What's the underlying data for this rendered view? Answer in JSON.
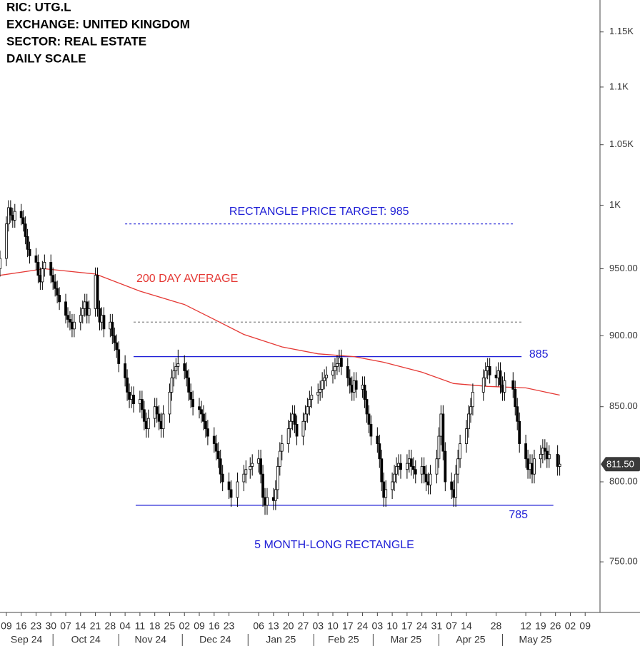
{
  "chart_data": {
    "type": "candlestick",
    "header": [
      "RIC: UTG.L",
      "EXCHANGE: UNITED KINGDOM",
      "SECTOR: REAL ESTATE",
      "DAILY SCALE"
    ],
    "log_scale": true,
    "grid": false,
    "up_color": "#ffffff",
    "down_color": "#000000",
    "ylim": [
      720,
      1180
    ],
    "yticks": [
      {
        "value": 1150,
        "label": "1.15K"
      },
      {
        "value": 1100,
        "label": "1.1K"
      },
      {
        "value": 1050,
        "label": "1.05K"
      },
      {
        "value": 1000,
        "label": "1K"
      },
      {
        "value": 950,
        "label": "950.00"
      },
      {
        "value": 900,
        "label": "900.00"
      },
      {
        "value": 850,
        "label": "850.00"
      },
      {
        "value": 800,
        "label": "800.00"
      },
      {
        "value": 750,
        "label": "750.00"
      }
    ],
    "xlim": [
      "2024-09-06",
      "2025-06-16"
    ],
    "xticks": [
      {
        "value": "2024-09-09",
        "label": "09"
      },
      {
        "value": "2024-09-16",
        "label": "16"
      },
      {
        "value": "2024-09-23",
        "label": "23"
      },
      {
        "value": "2024-09-30",
        "label": "30"
      },
      {
        "value": "2024-10-07",
        "label": "07"
      },
      {
        "value": "2024-10-14",
        "label": "14"
      },
      {
        "value": "2024-10-21",
        "label": "21"
      },
      {
        "value": "2024-10-28",
        "label": "28"
      },
      {
        "value": "2024-11-04",
        "label": "04"
      },
      {
        "value": "2024-11-11",
        "label": "11"
      },
      {
        "value": "2024-11-18",
        "label": "18"
      },
      {
        "value": "2024-11-25",
        "label": "25"
      },
      {
        "value": "2024-12-02",
        "label": "02"
      },
      {
        "value": "2024-12-09",
        "label": "09"
      },
      {
        "value": "2024-12-16",
        "label": "16"
      },
      {
        "value": "2024-12-23",
        "label": "23"
      },
      {
        "value": "2025-01-06",
        "label": "06"
      },
      {
        "value": "2025-01-13",
        "label": "13"
      },
      {
        "value": "2025-01-20",
        "label": "20"
      },
      {
        "value": "2025-01-27",
        "label": "27"
      },
      {
        "value": "2025-02-03",
        "label": "03"
      },
      {
        "value": "2025-02-10",
        "label": "10"
      },
      {
        "value": "2025-02-17",
        "label": "17"
      },
      {
        "value": "2025-02-24",
        "label": "24"
      },
      {
        "value": "2025-03-03",
        "label": "03"
      },
      {
        "value": "2025-03-10",
        "label": "10"
      },
      {
        "value": "2025-03-17",
        "label": "17"
      },
      {
        "value": "2025-03-24",
        "label": "24"
      },
      {
        "value": "2025-03-31",
        "label": "31"
      },
      {
        "value": "2025-04-07",
        "label": "07"
      },
      {
        "value": "2025-04-14",
        "label": "14"
      },
      {
        "value": "2025-04-28",
        "label": "28"
      },
      {
        "value": "2025-05-12",
        "label": "12"
      },
      {
        "value": "2025-05-19",
        "label": "19"
      },
      {
        "value": "2025-05-26",
        "label": "26"
      },
      {
        "value": "2025-06-02",
        "label": "02"
      },
      {
        "value": "2025-06-09",
        "label": "09"
      }
    ],
    "months": [
      {
        "value": "2024-09",
        "label": "Sep 24"
      },
      {
        "value": "2024-10",
        "label": "Oct 24"
      },
      {
        "value": "2024-11",
        "label": "Nov 24"
      },
      {
        "value": "2024-12",
        "label": "Dec 24"
      },
      {
        "value": "2025-01",
        "label": "Jan 25"
      },
      {
        "value": "2025-02",
        "label": "Feb 25"
      },
      {
        "value": "2025-03",
        "label": "Mar 25"
      },
      {
        "value": "2025-04",
        "label": "Apr 25"
      },
      {
        "value": "2025-05",
        "label": "May 25"
      }
    ],
    "x": [
      "2024-09-06",
      "2024-09-09",
      "2024-09-10",
      "2024-09-11",
      "2024-09-12",
      "2024-09-13",
      "2024-09-16",
      "2024-09-17",
      "2024-09-18",
      "2024-09-19",
      "2024-09-20",
      "2024-09-23",
      "2024-09-24",
      "2024-09-25",
      "2024-09-26",
      "2024-09-27",
      "2024-09-30",
      "2024-10-01",
      "2024-10-02",
      "2024-10-03",
      "2024-10-04",
      "2024-10-07",
      "2024-10-08",
      "2024-10-09",
      "2024-10-10",
      "2024-10-11",
      "2024-10-14",
      "2024-10-15",
      "2024-10-16",
      "2024-10-17",
      "2024-10-18",
      "2024-10-21",
      "2024-10-22",
      "2024-10-23",
      "2024-10-24",
      "2024-10-25",
      "2024-10-28",
      "2024-10-29",
      "2024-10-30",
      "2024-10-31",
      "2024-11-01",
      "2024-11-04",
      "2024-11-05",
      "2024-11-06",
      "2024-11-07",
      "2024-11-08",
      "2024-11-11",
      "2024-11-12",
      "2024-11-13",
      "2024-11-14",
      "2024-11-15",
      "2024-11-18",
      "2024-11-19",
      "2024-11-20",
      "2024-11-21",
      "2024-11-22",
      "2024-11-25",
      "2024-11-26",
      "2024-11-27",
      "2024-11-28",
      "2024-11-29",
      "2024-12-02",
      "2024-12-03",
      "2024-12-04",
      "2024-12-05",
      "2024-12-06",
      "2024-12-09",
      "2024-12-10",
      "2024-12-11",
      "2024-12-12",
      "2024-12-13",
      "2024-12-16",
      "2024-12-17",
      "2024-12-18",
      "2024-12-19",
      "2024-12-20",
      "2024-12-23",
      "2024-12-24",
      "2024-12-27",
      "2024-12-30",
      "2024-12-31",
      "2025-01-02",
      "2025-01-03",
      "2025-01-06",
      "2025-01-07",
      "2025-01-08",
      "2025-01-09",
      "2025-01-10",
      "2025-01-13",
      "2025-01-14",
      "2025-01-15",
      "2025-01-16",
      "2025-01-17",
      "2025-01-20",
      "2025-01-21",
      "2025-01-22",
      "2025-01-23",
      "2025-01-24",
      "2025-01-27",
      "2025-01-28",
      "2025-01-29",
      "2025-01-30",
      "2025-01-31",
      "2025-02-03",
      "2025-02-04",
      "2025-02-05",
      "2025-02-06",
      "2025-02-07",
      "2025-02-10",
      "2025-02-11",
      "2025-02-12",
      "2025-02-13",
      "2025-02-14",
      "2025-02-17",
      "2025-02-18",
      "2025-02-19",
      "2025-02-20",
      "2025-02-21",
      "2025-02-24",
      "2025-02-25",
      "2025-02-26",
      "2025-02-27",
      "2025-02-28",
      "2025-03-03",
      "2025-03-04",
      "2025-03-05",
      "2025-03-06",
      "2025-03-07",
      "2025-03-10",
      "2025-03-11",
      "2025-03-12",
      "2025-03-13",
      "2025-03-14",
      "2025-03-17",
      "2025-03-18",
      "2025-03-19",
      "2025-03-20",
      "2025-03-21",
      "2025-03-24",
      "2025-03-25",
      "2025-03-26",
      "2025-03-27",
      "2025-03-28",
      "2025-03-31",
      "2025-04-01",
      "2025-04-02",
      "2025-04-03",
      "2025-04-04",
      "2025-04-07",
      "2025-04-08",
      "2025-04-09",
      "2025-04-10",
      "2025-04-11",
      "2025-04-14",
      "2025-04-15",
      "2025-04-16",
      "2025-04-17",
      "2025-04-22",
      "2025-04-23",
      "2025-04-24",
      "2025-04-25",
      "2025-04-28",
      "2025-04-29",
      "2025-04-30",
      "2025-05-01",
      "2025-05-02",
      "2025-05-06",
      "2025-05-07",
      "2025-05-08",
      "2025-05-09",
      "2025-05-12",
      "2025-05-13",
      "2025-05-14",
      "2025-05-15",
      "2025-05-16",
      "2025-05-19",
      "2025-05-20",
      "2025-05-21",
      "2025-05-22",
      "2025-05-23",
      "2025-05-27",
      "2025-05-28"
    ],
    "open": [
      950,
      958,
      985,
      998,
      992,
      988,
      995,
      990,
      985,
      975,
      965,
      960,
      955,
      945,
      940,
      950,
      955,
      945,
      940,
      935,
      930,
      925,
      915,
      912,
      910,
      905,
      910,
      915,
      920,
      925,
      915,
      920,
      945,
      920,
      910,
      915,
      905,
      910,
      900,
      895,
      890,
      880,
      870,
      860,
      855,
      858,
      852,
      855,
      848,
      840,
      835,
      842,
      850,
      845,
      840,
      835,
      845,
      860,
      870,
      875,
      878,
      880,
      875,
      870,
      860,
      855,
      850,
      848,
      845,
      840,
      835,
      830,
      825,
      820,
      815,
      805,
      800,
      795,
      790,
      800,
      805,
      808,
      810,
      812,
      815,
      805,
      790,
      785,
      790,
      788,
      795,
      810,
      820,
      825,
      835,
      840,
      845,
      838,
      830,
      840,
      845,
      850,
      855,
      858,
      860,
      862,
      868,
      870,
      872,
      875,
      878,
      880,
      884,
      878,
      870,
      865,
      860,
      868,
      862,
      865,
      855,
      845,
      838,
      830,
      825,
      815,
      800,
      790,
      795,
      800,
      805,
      810,
      812,
      808,
      812,
      815,
      810,
      808,
      805,
      810,
      805,
      800,
      798,
      805,
      815,
      830,
      845,
      820,
      800,
      795,
      790,
      805,
      815,
      825,
      835,
      845,
      850,
      860,
      870,
      875,
      878,
      872,
      870,
      875,
      865,
      860,
      868,
      862,
      850,
      840,
      825,
      815,
      808,
      812,
      805,
      815,
      818,
      822,
      820,
      815,
      818,
      810
    ],
    "high": [
      964,
      991,
      1004,
      1004,
      998,
      1001,
      1001,
      996,
      991,
      981,
      971,
      966,
      961,
      951,
      956,
      961,
      961,
      951,
      946,
      941,
      936,
      931,
      921,
      918,
      916,
      916,
      921,
      926,
      931,
      931,
      926,
      951,
      951,
      926,
      921,
      921,
      916,
      916,
      906,
      901,
      896,
      886,
      876,
      866,
      864,
      864,
      861,
      861,
      854,
      846,
      848,
      856,
      856,
      851,
      846,
      851,
      866,
      876,
      881,
      884,
      890,
      886,
      881,
      876,
      866,
      861,
      856,
      854,
      851,
      846,
      841,
      836,
      831,
      826,
      821,
      811,
      806,
      801,
      806,
      811,
      814,
      816,
      818,
      821,
      821,
      811,
      796,
      796,
      796,
      801,
      816,
      826,
      831,
      841,
      846,
      851,
      851,
      844,
      846,
      851,
      856,
      861,
      864,
      866,
      868,
      874,
      876,
      878,
      881,
      884,
      886,
      890,
      890,
      884,
      876,
      871,
      874,
      874,
      871,
      871,
      861,
      851,
      844,
      836,
      831,
      821,
      806,
      801,
      806,
      811,
      816,
      818,
      818,
      818,
      821,
      821,
      816,
      814,
      816,
      816,
      811,
      806,
      811,
      821,
      836,
      851,
      851,
      826,
      806,
      801,
      811,
      821,
      831,
      841,
      851,
      856,
      866,
      876,
      881,
      884,
      884,
      878,
      881,
      881,
      871,
      874,
      874,
      868,
      856,
      846,
      831,
      821,
      818,
      818,
      821,
      824,
      828,
      828,
      826,
      824,
      824,
      817.5
    ],
    "low": [
      944,
      952,
      979,
      986,
      982,
      982,
      984,
      979,
      969,
      959,
      954,
      949,
      939,
      934,
      934,
      944,
      939,
      934,
      929,
      924,
      919,
      909,
      906,
      904,
      899,
      899,
      904,
      909,
      914,
      909,
      909,
      914,
      914,
      904,
      904,
      899,
      899,
      894,
      889,
      884,
      874,
      864,
      854,
      849,
      849,
      846,
      846,
      842,
      834,
      829,
      829,
      836,
      839,
      834,
      829,
      829,
      839,
      854,
      864,
      869,
      872,
      869,
      864,
      854,
      849,
      844,
      842,
      839,
      834,
      829,
      824,
      819,
      814,
      809,
      799,
      794,
      789,
      784,
      784,
      794,
      799,
      802,
      804,
      806,
      799,
      784,
      779,
      779,
      782,
      782,
      789,
      804,
      814,
      819,
      829,
      834,
      832,
      824,
      824,
      834,
      839,
      844,
      849,
      852,
      854,
      856,
      862,
      864,
      866,
      869,
      872,
      874,
      872,
      864,
      859,
      854,
      854,
      856,
      856,
      849,
      839,
      832,
      824,
      819,
      809,
      794,
      784,
      784,
      789,
      794,
      799,
      804,
      802,
      802,
      806,
      804,
      802,
      799,
      799,
      799,
      794,
      792,
      792,
      799,
      809,
      824,
      814,
      794,
      789,
      784,
      784,
      799,
      809,
      819,
      829,
      839,
      844,
      854,
      864,
      869,
      866,
      864,
      864,
      859,
      854,
      854,
      856,
      844,
      834,
      819,
      809,
      802,
      802,
      799,
      799,
      809,
      812,
      814,
      809,
      809,
      804,
      804
    ],
    "close": [
      958,
      985,
      998,
      992,
      988,
      995,
      990,
      985,
      975,
      965,
      960,
      955,
      945,
      940,
      950,
      955,
      945,
      940,
      935,
      930,
      925,
      915,
      912,
      910,
      905,
      910,
      915,
      920,
      925,
      915,
      920,
      945,
      920,
      910,
      915,
      905,
      910,
      900,
      895,
      890,
      880,
      870,
      860,
      855,
      858,
      852,
      855,
      848,
      840,
      835,
      842,
      850,
      845,
      840,
      835,
      845,
      860,
      870,
      875,
      878,
      880,
      875,
      870,
      860,
      855,
      850,
      848,
      845,
      840,
      835,
      830,
      825,
      820,
      815,
      805,
      800,
      795,
      790,
      800,
      805,
      808,
      810,
      812,
      815,
      805,
      790,
      785,
      790,
      788,
      795,
      810,
      820,
      825,
      835,
      840,
      845,
      838,
      830,
      840,
      845,
      850,
      855,
      858,
      860,
      862,
      868,
      870,
      872,
      875,
      878,
      880,
      884,
      878,
      870,
      865,
      860,
      868,
      862,
      865,
      855,
      845,
      838,
      830,
      825,
      815,
      800,
      790,
      795,
      800,
      805,
      810,
      812,
      808,
      812,
      815,
      810,
      808,
      805,
      810,
      805,
      800,
      798,
      805,
      815,
      830,
      845,
      820,
      800,
      795,
      790,
      805,
      815,
      825,
      835,
      845,
      850,
      860,
      870,
      875,
      878,
      872,
      870,
      875,
      865,
      860,
      868,
      862,
      850,
      840,
      825,
      815,
      808,
      812,
      805,
      815,
      818,
      822,
      820,
      815,
      818,
      810,
      811.5
    ],
    "last_price": {
      "value": 811.5,
      "label": "811.50"
    },
    "overlays": [
      {
        "name": "200 DAY AVERAGE",
        "color": "#e53935",
        "x": [
          "2024-09-06",
          "2024-09-27",
          "2024-10-21",
          "2024-11-11",
          "2024-12-02",
          "2024-12-16",
          "2024-12-30",
          "2025-01-17",
          "2025-02-03",
          "2025-02-20",
          "2025-03-06",
          "2025-03-24",
          "2025-04-08",
          "2025-04-24",
          "2025-05-12",
          "2025-05-28"
        ],
        "values": [
          945,
          950,
          946,
          933,
          923,
          912,
          901,
          892,
          887,
          885,
          881,
          874,
          866,
          864,
          863,
          858
        ]
      }
    ],
    "levels": [
      {
        "value": 985,
        "label": "RECTANGLE PRICE TARGET: 985",
        "from": "2024-11-04",
        "to": "2025-05-06",
        "color": "#1f1fd6",
        "style": "dashed"
      },
      {
        "value": 910,
        "from": "2024-11-08",
        "to": "2025-05-10",
        "color": "#888888",
        "style": "dashed"
      },
      {
        "value": 885,
        "label": "885",
        "from": "2024-11-08",
        "to": "2025-05-10",
        "color": "#1f1fd6",
        "style": "solid"
      },
      {
        "value": 785,
        "label": "785",
        "from": "2024-11-09",
        "to": "2025-05-25",
        "color": "#1f1fd6",
        "style": "solid"
      }
    ],
    "annotations": [
      {
        "text": "5 MONTH-LONG RECTANGLE",
        "color": "#1f1fd6"
      }
    ]
  }
}
